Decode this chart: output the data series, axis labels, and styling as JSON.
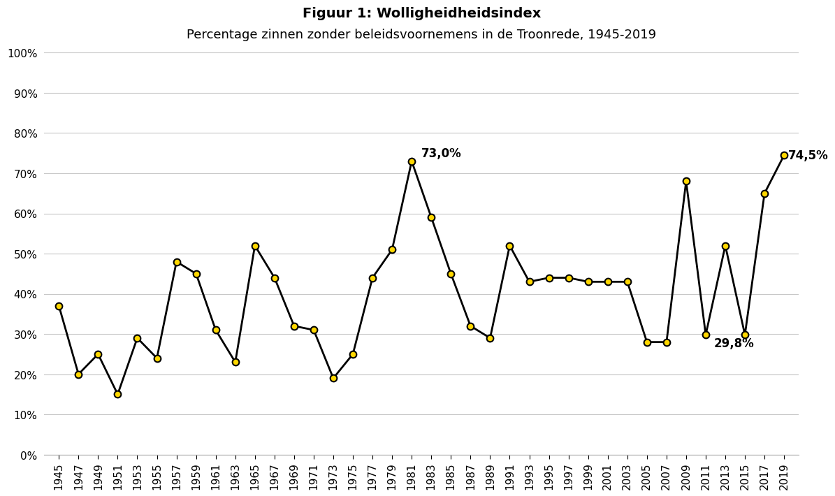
{
  "title_line1": "Figuur 1: Wolligheidheidsindex",
  "title_line2": "Percentage zinnen zonder beleidsvoornemens in de Troonrede, 1945-2019",
  "years": [
    1945,
    1947,
    1949,
    1951,
    1953,
    1955,
    1957,
    1959,
    1961,
    1963,
    1965,
    1967,
    1969,
    1971,
    1973,
    1975,
    1977,
    1979,
    1981,
    1983,
    1985,
    1987,
    1989,
    1991,
    1993,
    1995,
    1997,
    1999,
    2001,
    2003,
    2005,
    2007,
    2009,
    2011,
    2013,
    2015,
    2017,
    2019
  ],
  "values": [
    0.37,
    0.2,
    0.25,
    0.15,
    0.29,
    0.24,
    0.48,
    0.45,
    0.31,
    0.23,
    0.52,
    0.44,
    0.32,
    0.31,
    0.19,
    0.25,
    0.44,
    0.51,
    0.73,
    0.59,
    0.45,
    0.32,
    0.29,
    0.52,
    0.43,
    0.44,
    0.44,
    0.43,
    0.43,
    0.43,
    0.28,
    0.28,
    0.68,
    0.298,
    0.52,
    0.298,
    0.65,
    0.745
  ],
  "background_color": "#ffffff",
  "line_color": "#000000",
  "marker_facecolor": "#FFD700",
  "marker_edgecolor": "#000000",
  "grid_color": "#c8c8c8",
  "ann_73_year": 1981,
  "ann_73_val": 0.73,
  "ann_73_text": "73,0%",
  "ann_298_year": 2011,
  "ann_298_val": 0.298,
  "ann_298_text": "29,8%",
  "ann_745_year": 2019,
  "ann_745_val": 0.745,
  "ann_745_text": "74,5%",
  "title_fontsize": 14,
  "subtitle_fontsize": 13,
  "tick_fontsize": 11,
  "annotation_fontsize": 12
}
